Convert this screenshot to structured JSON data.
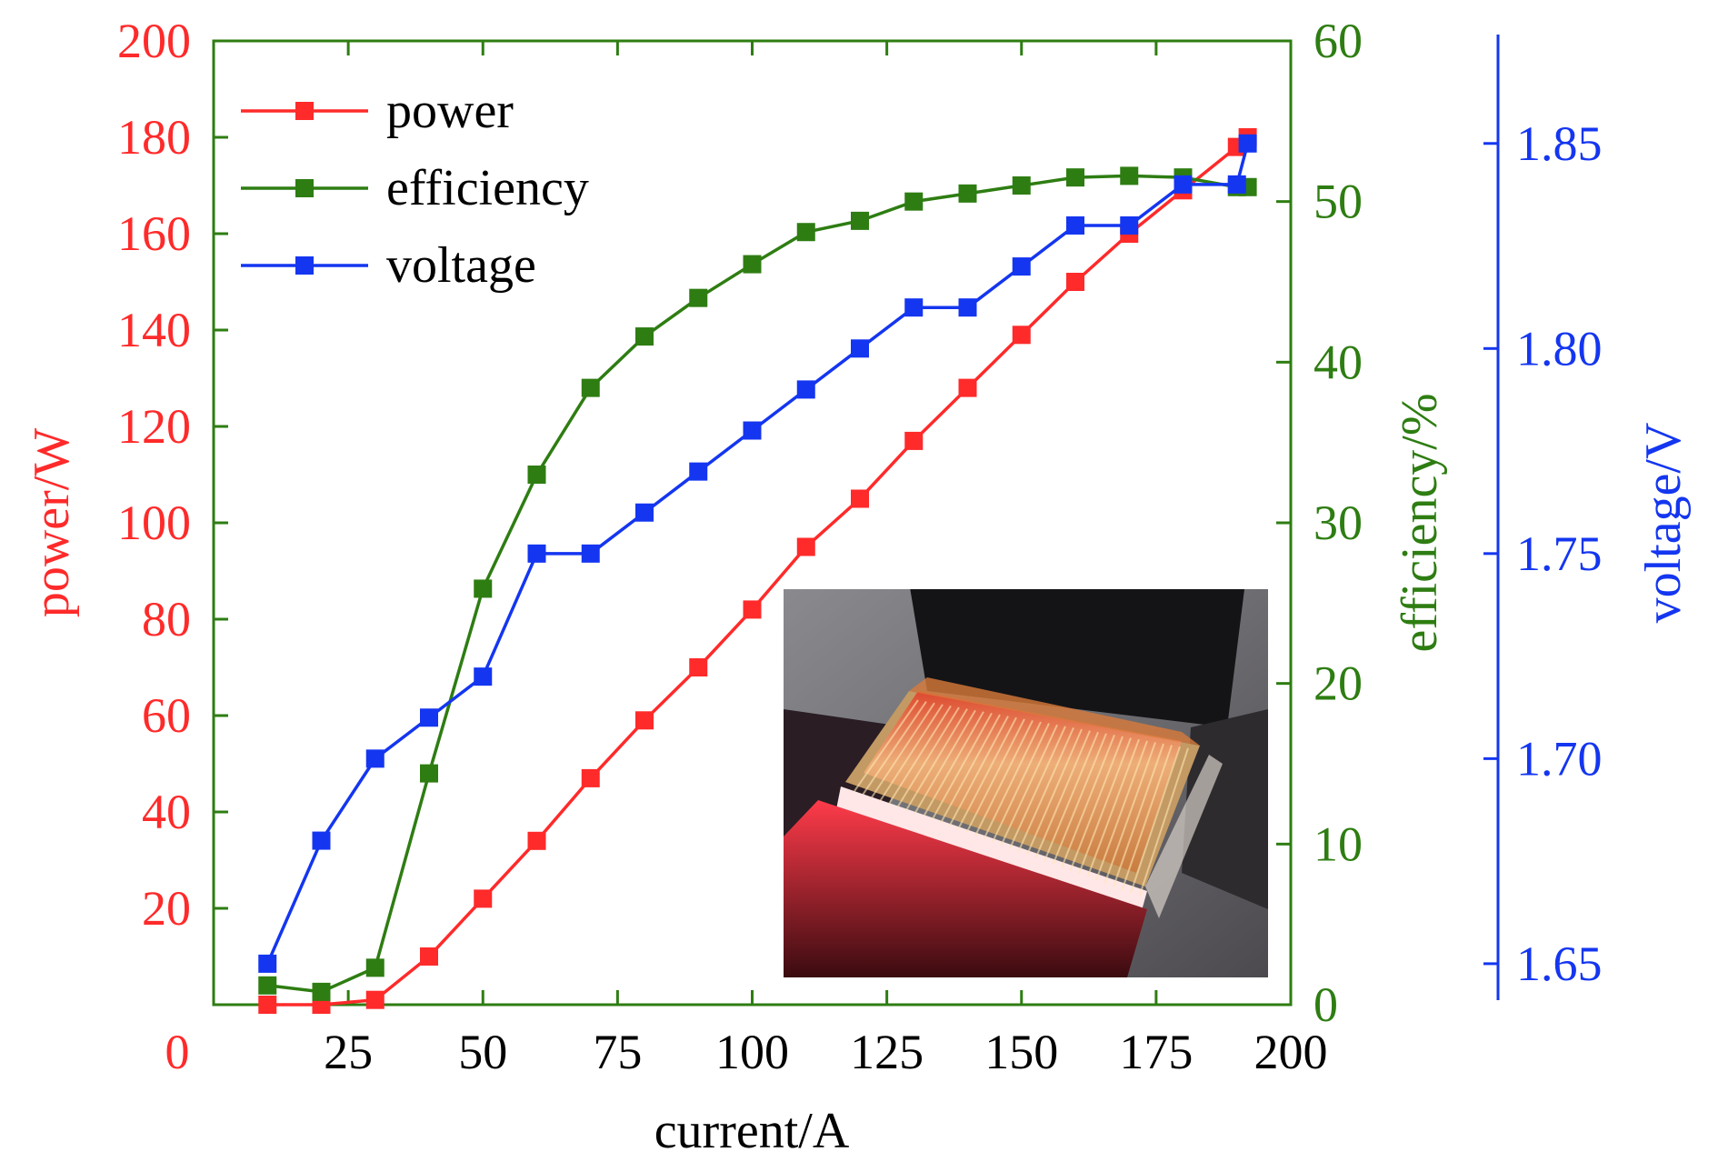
{
  "chart_data": {
    "type": "line",
    "xlabel": "current/A",
    "x_ticks": [
      "0",
      "25",
      "50",
      "75",
      "100",
      "125",
      "150",
      "175",
      "200"
    ],
    "xlim": [
      0,
      200
    ],
    "axes": {
      "power": {
        "label": "power/W",
        "ylim": [
          0,
          200
        ],
        "ticks": [
          "20",
          "40",
          "60",
          "80",
          "100",
          "120",
          "140",
          "160",
          "180",
          "200"
        ],
        "color": "#ff2a2a"
      },
      "efficiency": {
        "label": "efficiency/%",
        "ylim": [
          0,
          60
        ],
        "ticks": [
          "0",
          "10",
          "20",
          "30",
          "40",
          "50",
          "60"
        ],
        "color": "#2e7d12"
      },
      "voltage": {
        "label": "voltage/V",
        "ylim": [
          1.64,
          1.875
        ],
        "ticks": [
          "1.65",
          "1.70",
          "1.75",
          "1.80",
          "1.85"
        ],
        "color": "#1436f0"
      }
    },
    "legend": {
      "position": "top-left",
      "entries": [
        "power",
        "efficiency",
        "voltage"
      ]
    },
    "series": [
      {
        "name": "power",
        "axis": "power",
        "color": "#ff2a2a",
        "x": [
          10,
          20,
          30,
          40,
          50,
          60,
          70,
          80,
          90,
          100,
          110,
          120,
          130,
          140,
          150,
          160,
          170,
          180,
          190,
          192
        ],
        "values": [
          0,
          0,
          1,
          10,
          22,
          34,
          47,
          59,
          70,
          82,
          95,
          105,
          117,
          128,
          139,
          150,
          160,
          169,
          178,
          180
        ]
      },
      {
        "name": "efficiency",
        "axis": "efficiency",
        "color": "#2e7d12",
        "x": [
          10,
          20,
          30,
          40,
          50,
          60,
          70,
          80,
          90,
          100,
          110,
          120,
          130,
          140,
          150,
          160,
          170,
          180,
          190,
          192
        ],
        "values": [
          1.2,
          0.8,
          2.3,
          14.4,
          25.9,
          33.0,
          38.4,
          41.6,
          44.0,
          46.1,
          48.1,
          48.8,
          50.0,
          50.5,
          51.0,
          51.5,
          51.6,
          51.5,
          50.9,
          50.9
        ]
      },
      {
        "name": "voltage",
        "axis": "voltage",
        "color": "#1436f0",
        "x": [
          10,
          20,
          30,
          40,
          50,
          60,
          70,
          80,
          90,
          100,
          110,
          120,
          130,
          140,
          150,
          160,
          170,
          180,
          190,
          192
        ],
        "values": [
          1.65,
          1.68,
          1.7,
          1.71,
          1.72,
          1.75,
          1.75,
          1.76,
          1.77,
          1.78,
          1.79,
          1.8,
          1.81,
          1.81,
          1.82,
          1.83,
          1.83,
          1.84,
          1.84,
          1.85
        ]
      }
    ]
  }
}
